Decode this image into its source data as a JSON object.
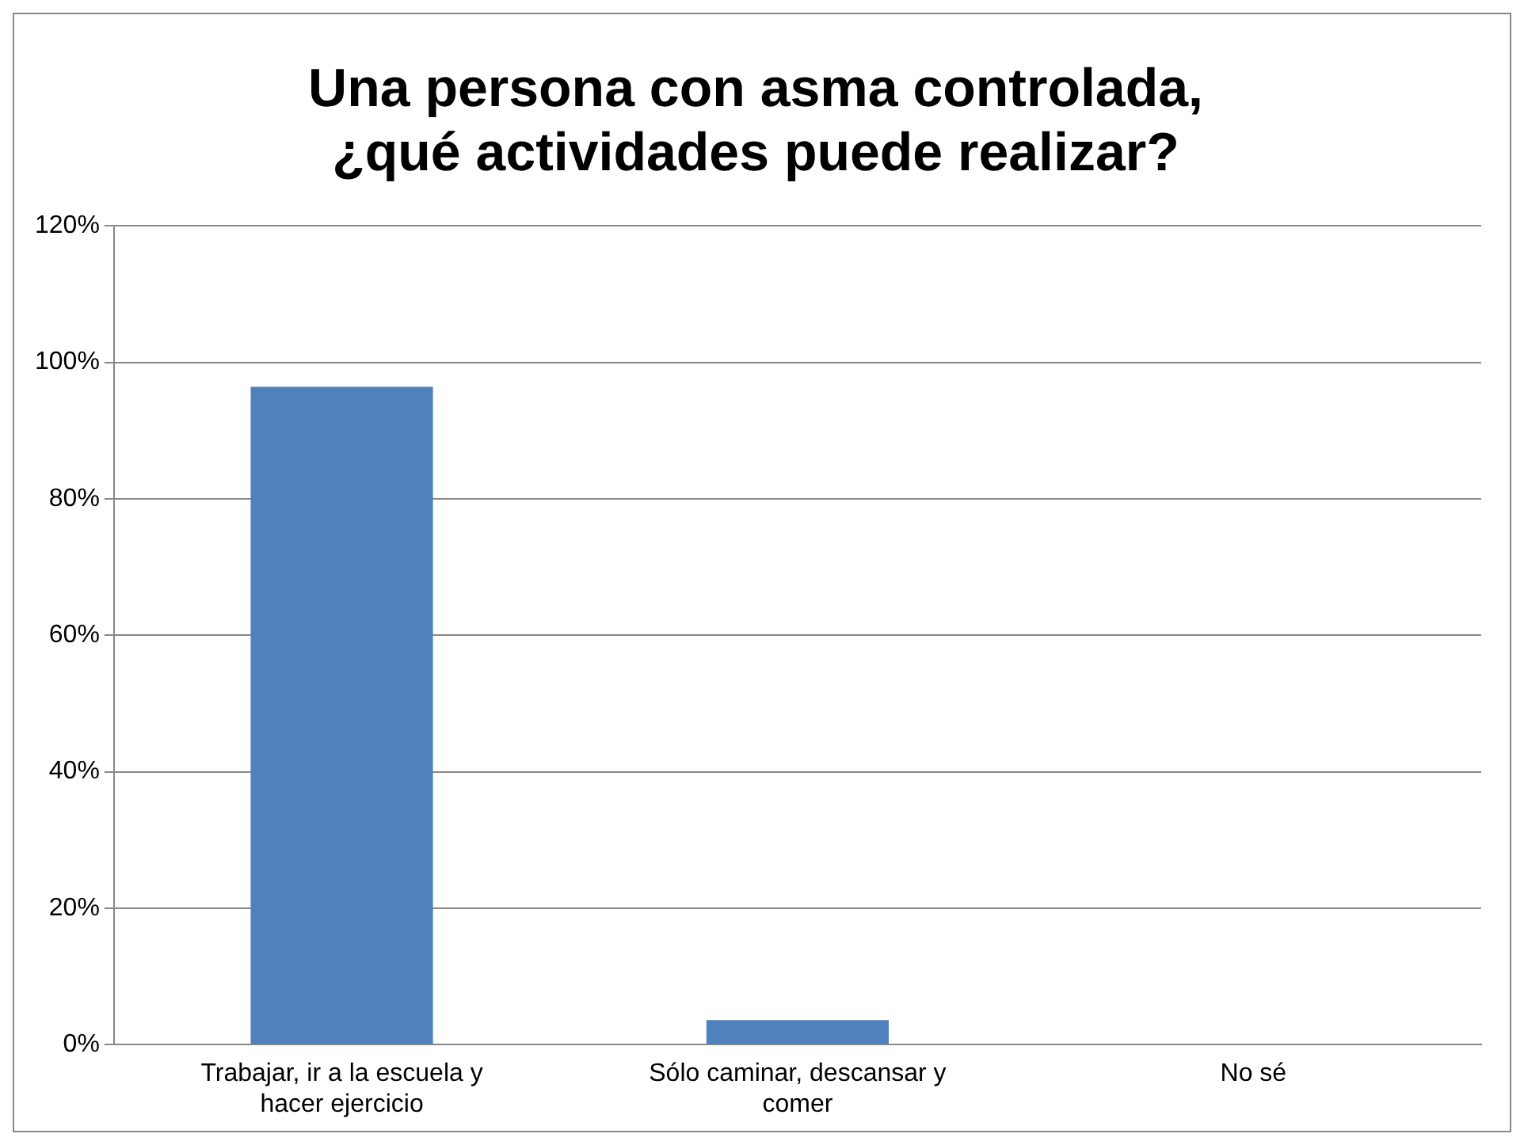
{
  "chart_data": {
    "type": "bar",
    "title": "Una persona con asma controlada, ¿qué actividades puede realizar?",
    "categories": [
      "Trabajar, ir a la escuela y hacer ejercicio",
      "Sólo caminar, descansar y comer",
      "No sé"
    ],
    "values": [
      96.4,
      3.6,
      0
    ],
    "color": "#4f81bd",
    "ylim": [
      0,
      120
    ],
    "yticks": [
      {
        "value": 0,
        "label": "0%"
      },
      {
        "value": 20,
        "label": "20%"
      },
      {
        "value": 40,
        "label": "40%"
      },
      {
        "value": 60,
        "label": "60%"
      },
      {
        "value": 80,
        "label": "80%"
      },
      {
        "value": 100,
        "label": "100%"
      },
      {
        "value": 120,
        "label": "120%"
      }
    ],
    "grid": "y",
    "legend": false
  }
}
